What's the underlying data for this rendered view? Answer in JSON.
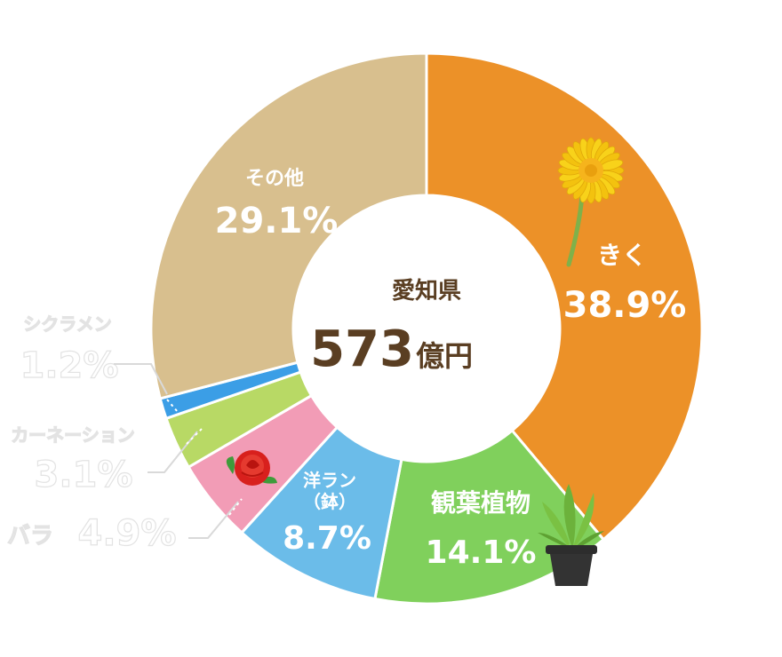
{
  "chart_data": {
    "type": "pie",
    "center_title": "愛知県",
    "center_total": "573",
    "center_unit": "億円",
    "unit": "%",
    "slices": [
      {
        "label": "きく",
        "value": 38.9,
        "color": "#ec9128"
      },
      {
        "label": "観葉植物",
        "value": 14.1,
        "color": "#80d05c"
      },
      {
        "label": "洋ラン\n（鉢）",
        "value": 8.7,
        "color": "#6bbce9"
      },
      {
        "label": "バラ",
        "value": 4.9,
        "color": "#f29cb6"
      },
      {
        "label": "カーネーション",
        "value": 3.1,
        "color": "#b8d965"
      },
      {
        "label": "シクラメン",
        "value": 1.2,
        "color": "#3b9ee6"
      },
      {
        "label": "その他",
        "value": 29.1,
        "color": "#d8bf8e"
      }
    ],
    "value_labels": [
      "38.9%",
      "14.1%",
      "8.7%",
      "4.9%",
      "3.1%",
      "1.2%",
      "29.1%"
    ],
    "center_text_color": "#5a3e22",
    "leader_line_color": "#d9d9d9"
  }
}
